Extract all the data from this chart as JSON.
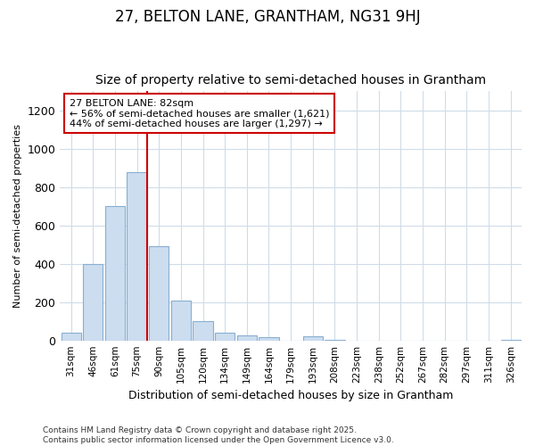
{
  "title1": "27, BELTON LANE, GRANTHAM, NG31 9HJ",
  "title2": "Size of property relative to semi-detached houses in Grantham",
  "xlabel": "Distribution of semi-detached houses by size in Grantham",
  "ylabel": "Number of semi-detached properties",
  "bin_labels": [
    "31sqm",
    "46sqm",
    "61sqm",
    "75sqm",
    "90sqm",
    "105sqm",
    "120sqm",
    "134sqm",
    "149sqm",
    "164sqm",
    "179sqm",
    "193sqm",
    "208sqm",
    "223sqm",
    "238sqm",
    "252sqm",
    "267sqm",
    "282sqm",
    "297sqm",
    "311sqm",
    "326sqm"
  ],
  "bar_heights": [
    40,
    400,
    700,
    880,
    490,
    210,
    100,
    40,
    25,
    15,
    0,
    20,
    5,
    0,
    0,
    0,
    0,
    0,
    0,
    0,
    5
  ],
  "bar_color": "#ccddf0",
  "bar_edgecolor": "#88afd0",
  "vline_color": "#cc0000",
  "annotation_title": "27 BELTON LANE: 82sqm",
  "annotation_line1": "← 56% of semi-detached houses are smaller (1,621)",
  "annotation_line2": "44% of semi-detached houses are larger (1,297) →",
  "annotation_box_facecolor": "#ffffff",
  "annotation_box_edgecolor": "#cc0000",
  "ylim": [
    0,
    1300
  ],
  "yticks": [
    0,
    200,
    400,
    600,
    800,
    1000,
    1200
  ],
  "footnote1": "Contains HM Land Registry data © Crown copyright and database right 2025.",
  "footnote2": "Contains public sector information licensed under the Open Government Licence v3.0.",
  "bg_color": "#ffffff",
  "grid_color": "#d0dce8",
  "title1_fontsize": 12,
  "title2_fontsize": 10
}
